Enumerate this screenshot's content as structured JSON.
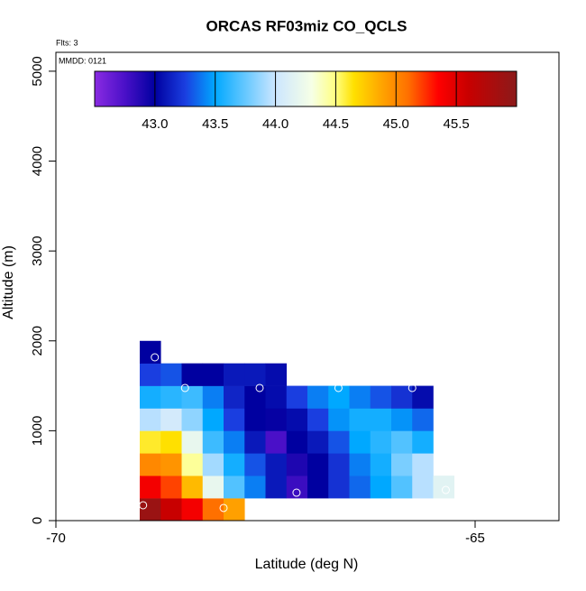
{
  "chart_data": {
    "type": "heatmap",
    "title": "ORCAS RF03miz CO_QCLS",
    "subtitle": "Flts: 3",
    "annotation": "MMDD: 0121",
    "xlabel": "Latitude (deg N)",
    "ylabel": "Altitude (m)",
    "xlim": [
      -70,
      -64
    ],
    "xticks": [
      -70,
      -65
    ],
    "ylim": [
      0,
      5210
    ],
    "yticks": [
      0,
      1000,
      2000,
      3000,
      4000,
      5000
    ],
    "colorbar_lim": [
      42.5,
      46.0
    ],
    "colorbar_ticks": [
      {
        "value": 43.0,
        "label": "43.0"
      },
      {
        "value": 43.5,
        "label": "43.5"
      },
      {
        "value": 44.0,
        "label": "44.0"
      },
      {
        "value": 44.5,
        "label": "44.5"
      },
      {
        "value": 45.0,
        "label": "45.0"
      },
      {
        "value": 45.5,
        "label": "45.5"
      }
    ],
    "colorscale": [
      [
        42.5,
        "#8a2be2"
      ],
      [
        42.75,
        "#4a10c8"
      ],
      [
        43.0,
        "#0000a0"
      ],
      [
        43.25,
        "#1a3ee0"
      ],
      [
        43.5,
        "#00a8ff"
      ],
      [
        43.75,
        "#66c8ff"
      ],
      [
        44.0,
        "#cce6ff"
      ],
      [
        44.3,
        "#f6ffe6"
      ],
      [
        44.5,
        "#ffff80"
      ],
      [
        44.65,
        "#ffe000"
      ],
      [
        44.9,
        "#ffa000"
      ],
      [
        45.1,
        "#ff7000"
      ],
      [
        45.35,
        "#ff0000"
      ],
      [
        45.6,
        "#c80000"
      ],
      [
        46.0,
        "#8b1a1a"
      ]
    ],
    "x": [
      -68.875,
      -68.625,
      -68.375,
      -68.125,
      -67.875,
      -68.875,
      -68.625,
      -68.375,
      -68.125,
      -67.875,
      -67.625,
      -67.375,
      -67.125,
      -66.875,
      -66.625,
      -66.375,
      -66.125,
      -65.875,
      -65.625,
      -65.375,
      -68.875,
      -68.625,
      -68.375,
      -68.125,
      -67.875,
      -67.625,
      -67.375,
      -67.125,
      -66.875,
      -66.625,
      -66.375,
      -66.125,
      -65.875,
      -65.625,
      -68.875,
      -68.625,
      -68.375,
      -68.125,
      -67.875,
      -67.625,
      -67.375,
      -67.125,
      -66.875,
      -66.625,
      -66.375,
      -66.125,
      -65.875,
      -65.625,
      -68.875,
      -68.625,
      -68.375,
      -68.125,
      -67.875,
      -67.625,
      -67.375,
      -67.125,
      -66.875,
      -66.625,
      -66.375,
      -66.125,
      -65.875,
      -65.625,
      -68.875,
      -68.625,
      -68.375,
      -68.125,
      -67.875,
      -67.625,
      -67.375,
      -67.125,
      -66.875,
      -66.625,
      -66.375,
      -66.125,
      -65.875,
      -65.625,
      -68.875,
      -68.625,
      -68.375,
      -68.125,
      -67.875,
      -67.625,
      -67.375,
      -68.875
    ],
    "y": [
      125,
      125,
      125,
      125,
      125,
      375,
      375,
      375,
      375,
      375,
      375,
      375,
      375,
      375,
      375,
      375,
      375,
      375,
      375,
      375,
      625,
      625,
      625,
      625,
      625,
      625,
      625,
      625,
      625,
      625,
      625,
      625,
      625,
      625,
      875,
      875,
      875,
      875,
      875,
      875,
      875,
      875,
      875,
      875,
      875,
      875,
      875,
      875,
      1125,
      1125,
      1125,
      1125,
      1125,
      1125,
      1125,
      1125,
      1125,
      1125,
      1125,
      1125,
      1125,
      1125,
      1375,
      1375,
      1375,
      1375,
      1375,
      1375,
      1375,
      1375,
      1375,
      1375,
      1375,
      1375,
      1375,
      1375,
      1625,
      1625,
      1625,
      1625,
      1625,
      1625,
      1625,
      1875
    ],
    "values": [
      45.9,
      45.6,
      45.4,
      45.1,
      44.9,
      45.4,
      45.2,
      44.8,
      44.2,
      43.7,
      43.4,
      43.1,
      42.8,
      43.0,
      43.2,
      43.35,
      43.5,
      43.7,
      43.95,
      44.15,
      45.0,
      44.95,
      44.45,
      43.9,
      43.55,
      43.3,
      43.1,
      42.9,
      43.0,
      43.2,
      43.4,
      43.55,
      43.8,
      43.95,
      44.6,
      44.65,
      44.2,
      43.65,
      43.4,
      43.1,
      42.75,
      43.0,
      43.1,
      43.3,
      43.5,
      43.6,
      43.7,
      43.55,
      43.95,
      44.05,
      43.85,
      43.5,
      43.25,
      43.0,
      42.98,
      43.05,
      43.25,
      43.45,
      43.55,
      43.55,
      43.45,
      43.35,
      43.55,
      43.6,
      43.65,
      43.4,
      43.15,
      43.0,
      43.05,
      43.25,
      43.4,
      43.5,
      43.4,
      43.3,
      43.2,
      43.05,
      43.25,
      43.3,
      43.0,
      43.0,
      43.1,
      43.1,
      43.05,
      43.0
    ],
    "track": {
      "color": "#ffffff",
      "x": [
        -68.96,
        -68.82,
        -68.46,
        -68.0,
        -67.57,
        -67.13,
        -66.63,
        -65.75,
        -65.35
      ],
      "y": [
        171,
        1817,
        1476,
        141,
        1476,
        311,
        1476,
        1476,
        341
      ]
    }
  }
}
